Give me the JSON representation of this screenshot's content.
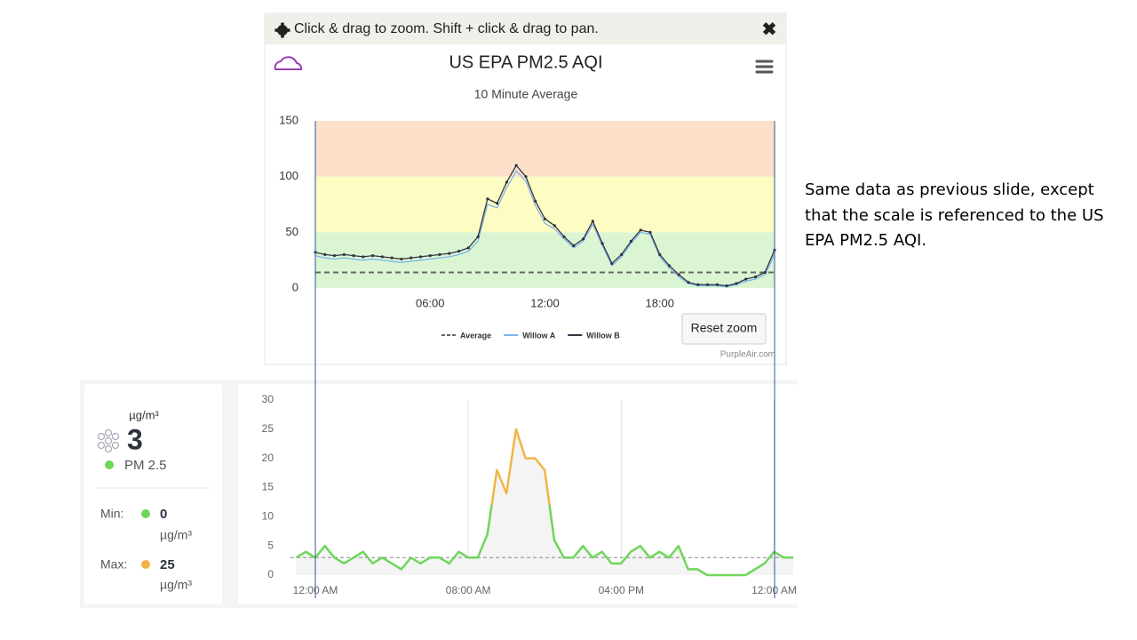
{
  "toolbar": "Click & drag to zoom. Shift + click & drag to pan.",
  "reset_zoom": "Reset zoom",
  "credit": "PurpleAir.com",
  "note": "Same data as previous slide, except that the scale is referenced to the US EPA PM2.5 AQI.",
  "sensor_panel": {
    "unit": "µg/m³",
    "value": 3,
    "label": "PM 2.5",
    "min_label": "Min:",
    "min": 0,
    "min_unit": "µg/m³",
    "max_label": "Max:",
    "max": 25,
    "max_unit": "µg/m³"
  },
  "chart_data": [
    {
      "type": "line",
      "title": "US EPA PM2.5 AQI",
      "subtitle": "10 Minute Average",
      "x": [
        0,
        0.5,
        1,
        1.5,
        2,
        2.5,
        3,
        3.5,
        4,
        4.5,
        5,
        5.5,
        6,
        6.5,
        7,
        7.5,
        8,
        8.5,
        9,
        9.5,
        10,
        10.5,
        11,
        11.5,
        12,
        12.5,
        13,
        13.5,
        14,
        14.5,
        15,
        15.5,
        16,
        16.5,
        17,
        17.5,
        18,
        18.5,
        19,
        19.5,
        20,
        20.5,
        21,
        21.5,
        22,
        22.5,
        23,
        23.5,
        24
      ],
      "series": [
        {
          "name": "Average",
          "color": "#666666",
          "dash": true,
          "values": [
            14,
            14,
            14,
            14,
            14,
            14,
            14,
            14,
            14,
            14,
            14,
            14,
            14,
            14,
            14,
            14,
            14,
            14,
            14,
            14,
            14,
            14,
            14,
            14,
            14,
            14,
            14,
            14,
            14,
            14,
            14,
            14,
            14,
            14,
            14,
            14,
            14,
            14,
            14,
            14,
            14,
            14,
            14,
            14,
            14,
            14,
            14,
            14,
            14
          ]
        },
        {
          "name": "Willow A",
          "color": "#7cb5ec",
          "values": [
            29,
            27,
            26,
            27,
            26,
            25,
            26,
            25,
            24,
            23,
            24,
            25,
            26,
            27,
            28,
            30,
            33,
            42,
            75,
            72,
            90,
            105,
            96,
            74,
            58,
            53,
            44,
            36,
            42,
            57,
            38,
            20,
            28,
            40,
            50,
            48,
            28,
            18,
            10,
            4,
            2,
            2,
            2,
            1,
            3,
            6,
            8,
            12,
            30
          ]
        },
        {
          "name": "Willow B",
          "color": "#333344",
          "markers": true,
          "values": [
            32,
            30,
            29,
            30,
            29,
            28,
            29,
            28,
            27,
            26,
            27,
            28,
            29,
            30,
            31,
            33,
            36,
            46,
            80,
            76,
            95,
            110,
            100,
            78,
            62,
            56,
            46,
            38,
            44,
            60,
            40,
            22,
            30,
            42,
            52,
            50,
            30,
            20,
            12,
            5,
            3,
            3,
            3,
            2,
            4,
            8,
            10,
            14,
            34
          ]
        }
      ],
      "bands": [
        {
          "from": 0,
          "to": 50,
          "color": "#dbf5d2"
        },
        {
          "from": 50,
          "to": 100,
          "color": "#fdfcc2"
        },
        {
          "from": 100,
          "to": 150,
          "color": "#fde0c9"
        }
      ],
      "xlim": [
        0,
        24
      ],
      "xticks": [
        {
          "value": 6,
          "label": "06:00"
        },
        {
          "value": 12,
          "label": "12:00"
        },
        {
          "value": 18,
          "label": "18:00"
        }
      ],
      "ylim": [
        0,
        150
      ],
      "yticks": [
        0,
        50,
        100,
        150
      ]
    },
    {
      "type": "line",
      "x": [
        -1,
        -0.5,
        0,
        0.5,
        1,
        1.5,
        2,
        2.5,
        3,
        3.5,
        4,
        4.5,
        5,
        5.5,
        6,
        6.5,
        7,
        7.5,
        8,
        8.5,
        9,
        9.5,
        10,
        10.5,
        11,
        11.5,
        12,
        12.5,
        13,
        13.5,
        14,
        14.5,
        15,
        15.5,
        16,
        16.5,
        17,
        17.5,
        18,
        18.5,
        19,
        19.5,
        20,
        20.5,
        21,
        21.5,
        22,
        22.5,
        23,
        23.5,
        24,
        24.5,
        25
      ],
      "series": [
        {
          "color": "#6fd65b",
          "high_color": "#f2b44a",
          "values": [
            3,
            4,
            3,
            5,
            3,
            2,
            3,
            4,
            2,
            3,
            2,
            1,
            3,
            2,
            3,
            3,
            2,
            4,
            3,
            3,
            7,
            18,
            14,
            25,
            20,
            20,
            18,
            6,
            3,
            3,
            5,
            3,
            4,
            2,
            2,
            4,
            5,
            3,
            4,
            3,
            5,
            1,
            1,
            0,
            0,
            0,
            0,
            0,
            1,
            2,
            4,
            3,
            3
          ]
        }
      ],
      "threshold": 12,
      "mean": 3,
      "area_color": "#f3f4f3",
      "grid_x": true,
      "xlim": [
        -1.3,
        25
      ],
      "xticks": [
        {
          "value": 0,
          "label": "12:00 AM"
        },
        {
          "value": 8,
          "label": "08:00 AM"
        },
        {
          "value": 16,
          "label": "04:00 PM"
        },
        {
          "value": 24,
          "label": "12:00 AM"
        }
      ],
      "ylim": [
        0,
        30
      ],
      "yticks": [
        0,
        5,
        10,
        15,
        20,
        25,
        30
      ]
    }
  ]
}
